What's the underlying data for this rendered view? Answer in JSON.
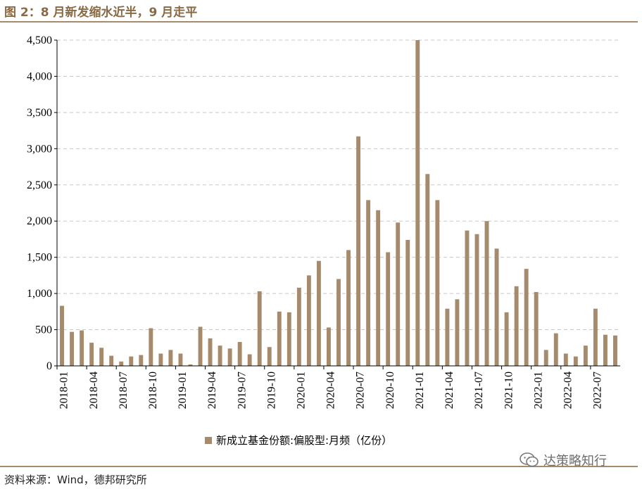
{
  "figure": {
    "title": "图 2：8 月新发缩水近半，9 月走平",
    "source": "资料来源：Wind，德邦研究所",
    "watermark": "达策略知行",
    "watermark_icon": "wechat-icon"
  },
  "colors": {
    "bar": "#a58b6c",
    "rule": "#a58b6c",
    "title": "#8a6a44",
    "grid": "#c8c8c8"
  },
  "chart_data": {
    "type": "bar",
    "title": "",
    "xlabel": "",
    "ylabel": "",
    "ylim": [
      0,
      4500
    ],
    "yticks": [
      0,
      500,
      1000,
      1500,
      2000,
      2500,
      3000,
      3500,
      4000,
      4500
    ],
    "ytick_labels": [
      "0",
      "500",
      "1,000",
      "1,500",
      "2,000",
      "2,500",
      "3,000",
      "3,500",
      "4,000",
      "4,500"
    ],
    "grid": true,
    "legend": "bottom-center",
    "categories": [
      "2018-01",
      "2018-02",
      "2018-03",
      "2018-04",
      "2018-05",
      "2018-06",
      "2018-07",
      "2018-08",
      "2018-09",
      "2018-10",
      "2018-11",
      "2018-12",
      "2019-01",
      "2019-02",
      "2019-03",
      "2019-04",
      "2019-05",
      "2019-06",
      "2019-07",
      "2019-08",
      "2019-09",
      "2019-10",
      "2019-11",
      "2019-12",
      "2020-01",
      "2020-02",
      "2020-03",
      "2020-04",
      "2020-05",
      "2020-06",
      "2020-07",
      "2020-08",
      "2020-09",
      "2020-10",
      "2020-11",
      "2020-12",
      "2021-01",
      "2021-02",
      "2021-03",
      "2021-04",
      "2021-05",
      "2021-06",
      "2021-07",
      "2021-08",
      "2021-09",
      "2021-10",
      "2021-11",
      "2021-12",
      "2022-01",
      "2022-02",
      "2022-03",
      "2022-04",
      "2022-05",
      "2022-06",
      "2022-07",
      "2022-08",
      "2022-09"
    ],
    "xtick_labels": [
      "2018-01",
      "2018-04",
      "2018-07",
      "2018-10",
      "2019-01",
      "2019-04",
      "2019-07",
      "2019-10",
      "2020-01",
      "2020-04",
      "2020-07",
      "2020-10",
      "2021-01",
      "2021-04",
      "2021-07",
      "2021-10",
      "2022-01",
      "2022-04",
      "2022-07"
    ],
    "series": [
      {
        "name": "新成立基金份额:偏股型:月频（亿份）",
        "values": [
          830,
          470,
          490,
          320,
          250,
          140,
          60,
          130,
          150,
          520,
          170,
          220,
          170,
          20,
          540,
          380,
          280,
          240,
          330,
          160,
          1030,
          260,
          750,
          740,
          1080,
          1250,
          1450,
          530,
          1200,
          1600,
          3170,
          2290,
          2150,
          1570,
          1980,
          1740,
          4500,
          2650,
          2290,
          790,
          920,
          1870,
          1820,
          2000,
          1620,
          740,
          1100,
          1340,
          1020,
          220,
          450,
          170,
          130,
          280,
          790,
          430,
          420
        ]
      }
    ]
  }
}
